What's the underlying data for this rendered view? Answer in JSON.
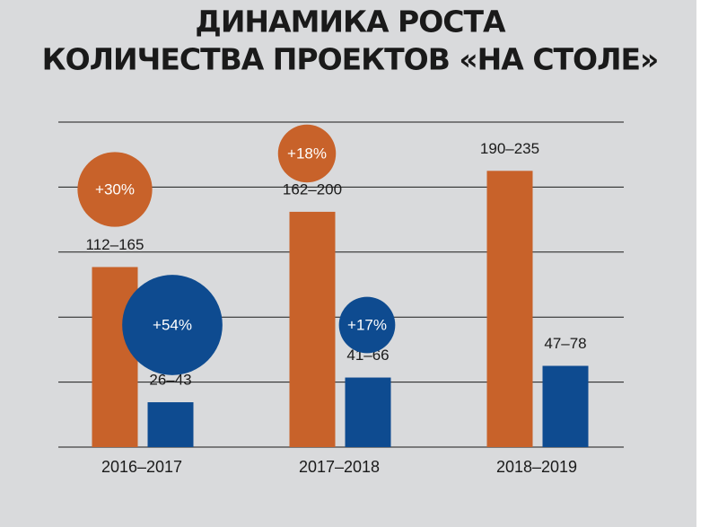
{
  "chart_data": {
    "type": "bar",
    "title": [
      "ДИНАМИКА РОСТА",
      "КОЛИЧЕСТВА ПРОЕКТОВ «НА СТОЛЕ»"
    ],
    "categories": [
      "2016–2017",
      "2017–2018",
      "2018–2019"
    ],
    "ylim": [
      0,
      250
    ],
    "yticks": [
      0,
      50,
      100,
      150,
      200,
      250
    ],
    "grid": true,
    "series": [
      {
        "color": "#c8622a",
        "low": [
          112,
          162,
          190
        ],
        "high": [
          165,
          200,
          235
        ],
        "value_labels": [
          "112–165",
          "162–200",
          "190–235"
        ],
        "growth": [
          30,
          18,
          null
        ],
        "growth_labels": [
          "+30%",
          "+18%",
          null
        ]
      },
      {
        "color": "#0e4b90",
        "low": [
          26,
          41,
          47
        ],
        "high": [
          43,
          66,
          78
        ],
        "value_labels": [
          "26–43",
          "41–66",
          "47–78"
        ],
        "growth": [
          54,
          17,
          null
        ],
        "growth_labels": [
          "+54%",
          "+17%",
          null
        ]
      }
    ]
  }
}
